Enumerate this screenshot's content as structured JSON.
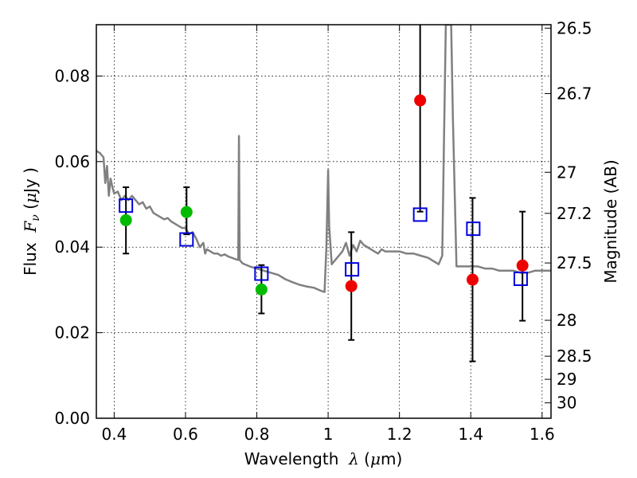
{
  "chart_data": {
    "type": "scatter",
    "title": "",
    "xlabel_prefix": "Wavelength",
    "xlabel_lambda": "λ",
    "xlabel_unit_open": " (",
    "xlabel_mu": "μ",
    "xlabel_unit_close": "m)",
    "ylabel_prefix": "Flux",
    "ylabel_F": "F",
    "ylabel_nu": "ν",
    "ylabel_open": "  (",
    "ylabel_mu": "μ",
    "ylabel_close": "Jy )",
    "y2label": "Magnitude (AB)",
    "xlim": [
      0.35,
      1.625
    ],
    "ylim": [
      0.0,
      0.092
    ],
    "grid": true,
    "grid_style": "dotted",
    "xticks": [
      0.4,
      0.6,
      0.8,
      1.0,
      1.2,
      1.4,
      1.6
    ],
    "xtick_labels": [
      "0.4",
      "0.6",
      "0.8",
      "1",
      "1.2",
      "1.4",
      "1.6"
    ],
    "yticks": [
      0.0,
      0.02,
      0.04,
      0.06,
      0.08
    ],
    "ytick_labels": [
      "0.00",
      "0.02",
      "0.04",
      "0.06",
      "0.08"
    ],
    "mag_ticks": [
      {
        "label": "26.5",
        "flux": 0.0912
      },
      {
        "label": "26.7",
        "flux": 0.0759
      },
      {
        "label": "27",
        "flux": 0.0575
      },
      {
        "label": "27.2",
        "flux": 0.0479
      },
      {
        "label": "27.5",
        "flux": 0.0363
      },
      {
        "label": "28",
        "flux": 0.0229
      },
      {
        "label": "28.5",
        "flux": 0.0145
      },
      {
        "label": "29",
        "flux": 0.0091
      },
      {
        "label": "30",
        "flux": 0.0036
      }
    ],
    "colors": {
      "model": "#808080",
      "green": "#00bb00",
      "red": "#ee0000",
      "box": "#0000dd",
      "errorbar": "#000000"
    },
    "series": [
      {
        "name": "",
        "kind": "model-line",
        "x": [
          0.35,
          0.36,
          0.37,
          0.375,
          0.38,
          0.385,
          0.39,
          0.395,
          0.4,
          0.41,
          0.42,
          0.43,
          0.44,
          0.45,
          0.46,
          0.47,
          0.48,
          0.49,
          0.5,
          0.51,
          0.52,
          0.53,
          0.54,
          0.55,
          0.56,
          0.57,
          0.58,
          0.59,
          0.6,
          0.61,
          0.62,
          0.63,
          0.64,
          0.65,
          0.655,
          0.66,
          0.67,
          0.68,
          0.69,
          0.7,
          0.71,
          0.72,
          0.73,
          0.74,
          0.748,
          0.75,
          0.752,
          0.76,
          0.78,
          0.8,
          0.82,
          0.84,
          0.86,
          0.88,
          0.9,
          0.92,
          0.94,
          0.96,
          0.98,
          0.99,
          0.995,
          1.0,
          1.003,
          1.01,
          1.02,
          1.03,
          1.04,
          1.05,
          1.06,
          1.07,
          1.08,
          1.09,
          1.1,
          1.12,
          1.14,
          1.15,
          1.16,
          1.18,
          1.2,
          1.22,
          1.24,
          1.26,
          1.28,
          1.3,
          1.31,
          1.32,
          1.325,
          1.33,
          1.335,
          1.34,
          1.345,
          1.35,
          1.36,
          1.38,
          1.4,
          1.42,
          1.44,
          1.46,
          1.48,
          1.5,
          1.52,
          1.54,
          1.56,
          1.58,
          1.6,
          1.625
        ],
        "y": [
          0.0625,
          0.062,
          0.061,
          0.055,
          0.059,
          0.052,
          0.056,
          0.054,
          0.0525,
          0.053,
          0.051,
          0.052,
          0.051,
          0.052,
          0.051,
          0.05,
          0.0505,
          0.049,
          0.0495,
          0.048,
          0.0475,
          0.047,
          0.0465,
          0.0468,
          0.046,
          0.0455,
          0.045,
          0.0445,
          0.0445,
          0.043,
          0.0435,
          0.042,
          0.04,
          0.041,
          0.0385,
          0.0395,
          0.039,
          0.0385,
          0.0385,
          0.038,
          0.0383,
          0.0378,
          0.0375,
          0.0372,
          0.037,
          0.066,
          0.037,
          0.0362,
          0.0355,
          0.035,
          0.0345,
          0.034,
          0.0335,
          0.0325,
          0.0318,
          0.0312,
          0.0308,
          0.0305,
          0.0298,
          0.0295,
          0.04,
          0.058,
          0.045,
          0.036,
          0.037,
          0.038,
          0.039,
          0.041,
          0.038,
          0.0405,
          0.039,
          0.0415,
          0.0405,
          0.0395,
          0.0385,
          0.0395,
          0.039,
          0.039,
          0.039,
          0.0385,
          0.0385,
          0.038,
          0.0375,
          0.0365,
          0.036,
          0.038,
          0.065,
          0.092,
          0.092,
          0.092,
          0.092,
          0.07,
          0.0355,
          0.0355,
          0.0355,
          0.0355,
          0.035,
          0.035,
          0.0345,
          0.0345,
          0.0345,
          0.034,
          0.034,
          0.0345,
          0.0345,
          0.0345
        ]
      },
      {
        "name": "",
        "kind": "points-green",
        "x": [
          0.433,
          0.603,
          0.813
        ],
        "y": [
          0.0463,
          0.0482,
          0.0301
        ],
        "err_low": [
          0.0385,
          0.043,
          0.0245
        ],
        "err_high": [
          0.054,
          0.054,
          0.0358
        ]
      },
      {
        "name": "",
        "kind": "points-red",
        "x": [
          1.065,
          1.258,
          1.405,
          1.545
        ],
        "y": [
          0.0309,
          0.0743,
          0.0324,
          0.0357
        ],
        "err_low": [
          0.0183,
          0.0483,
          0.0133,
          0.0228
        ],
        "err_high": [
          0.0435,
          0.092,
          0.0515,
          0.0483
        ]
      },
      {
        "name": "",
        "kind": "boxes",
        "x": [
          0.433,
          0.603,
          0.813,
          1.067,
          1.258,
          1.407,
          1.54
        ],
        "y": [
          0.0497,
          0.0418,
          0.0338,
          0.0348,
          0.0476,
          0.0443,
          0.0326
        ]
      }
    ]
  }
}
